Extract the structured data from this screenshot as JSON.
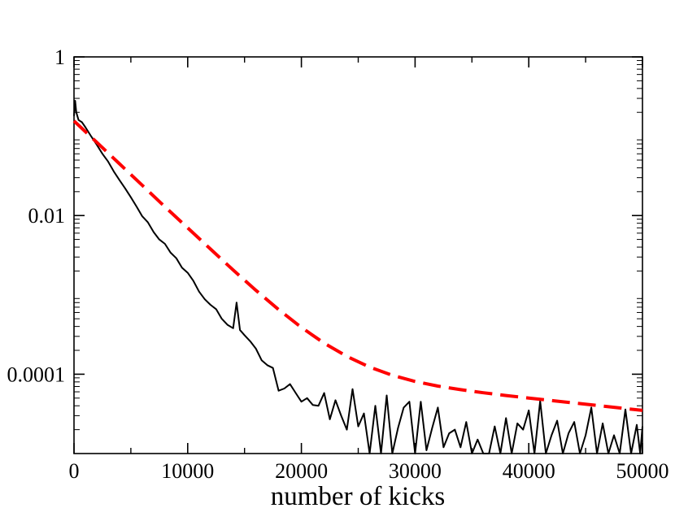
{
  "chart_data": {
    "type": "line",
    "title": "",
    "xlabel": "number of kicks",
    "ylabel": "",
    "xlim": [
      0,
      50000
    ],
    "ylim": [
      1e-05,
      1
    ],
    "y_scale": "log",
    "x_ticks": [
      0,
      10000,
      20000,
      30000,
      40000,
      50000
    ],
    "x_tick_labels": [
      "0",
      "10000",
      "20000",
      "30000",
      "40000",
      "50000"
    ],
    "y_ticks": [
      1,
      0.01,
      0.0001
    ],
    "y_tick_labels": [
      "1",
      "0.01",
      "0.0001"
    ],
    "grid": false,
    "legend": "none",
    "series": [
      {
        "color": "#000000",
        "style": "solid",
        "x": [
          0,
          100,
          200,
          400,
          700,
          1000,
          1500,
          2000,
          2500,
          3000,
          3500,
          4000,
          4500,
          5000,
          5500,
          6000,
          6500,
          7000,
          7500,
          8000,
          8500,
          9000,
          9500,
          10000,
          10500,
          11000,
          11500,
          12000,
          12500,
          13000,
          13500,
          14000,
          14300,
          14600,
          15000,
          15500,
          16000,
          16500,
          17000,
          17500,
          18000,
          18500,
          19000,
          19500,
          20000,
          20500,
          21000,
          21500,
          22000,
          22500,
          23000,
          23500,
          24000,
          24500,
          25000,
          25500,
          26000,
          26500,
          27000,
          27500,
          28000,
          28500,
          29000,
          29500,
          30000,
          30500,
          31000,
          31500,
          32000,
          32500,
          33000,
          33500,
          34000,
          34500,
          35000,
          35500,
          36000,
          36500,
          37000,
          37500,
          38000,
          38500,
          39000,
          39500,
          40000,
          40500,
          41000,
          41500,
          42000,
          42500,
          43000,
          43500,
          44000,
          44500,
          45000,
          45500,
          46000,
          46500,
          47000,
          47500,
          48000,
          48500,
          49000,
          49500,
          49800,
          50000
        ],
        "y": [
          0.18,
          0.28,
          0.2,
          0.16,
          0.15,
          0.13,
          0.1,
          0.078,
          0.06,
          0.048,
          0.036,
          0.028,
          0.022,
          0.017,
          0.013,
          0.0098,
          0.0082,
          0.0062,
          0.005,
          0.0044,
          0.0034,
          0.0029,
          0.0022,
          0.0019,
          0.0015,
          0.0011,
          0.00088,
          0.00075,
          0.00066,
          0.0005,
          0.00042,
          0.00038,
          0.0008,
          0.00036,
          0.00031,
          0.00026,
          0.00021,
          0.00015,
          0.00013,
          0.00012,
          6.2e-05,
          6.6e-05,
          7.5e-05,
          5.8e-05,
          4.5e-05,
          5e-05,
          4.1e-05,
          4e-05,
          5.8e-05,
          2.7e-05,
          4.7e-05,
          3e-05,
          2e-05,
          6.5e-05,
          2.2e-05,
          3.2e-05,
          9e-06,
          4e-05,
          8e-06,
          5.4e-05,
          6e-06,
          2.1e-05,
          3.8e-05,
          4.5e-05,
          8e-06,
          4.5e-05,
          1.1e-05,
          2.1e-05,
          3.8e-05,
          1.2e-05,
          1.8e-05,
          2e-05,
          1.2e-05,
          2.5e-05,
          8e-06,
          1.5e-05,
          3.8e-06,
          8e-06,
          2.2e-05,
          4.5e-06,
          2.8e-05,
          4e-06,
          2.4e-05,
          2e-05,
          3.5e-05,
          8e-06,
          4.6e-05,
          9e-06,
          1.7e-05,
          2.6e-05,
          5e-06,
          1.8e-05,
          2.5e-05,
          6e-06,
          1.7e-05,
          3.8e-05,
          8e-06,
          2.4e-05,
          6e-06,
          1.7e-05,
          7e-06,
          3.6e-05,
          6.6e-06,
          2.3e-05,
          3.4e-06,
          2.2e-05
        ]
      },
      {
        "color": "#ff0000",
        "style": "dashed",
        "x": [
          0,
          2000,
          4000,
          6000,
          8000,
          10000,
          12000,
          14000,
          16000,
          18000,
          20000,
          22000,
          24000,
          26000,
          28000,
          30000,
          32000,
          34000,
          36000,
          38000,
          40000,
          42000,
          44000,
          46000,
          48000,
          50000
        ],
        "y": [
          0.156,
          0.0837,
          0.0449,
          0.0241,
          0.0129,
          0.00698,
          0.00378,
          0.00206,
          0.00114,
          0.000653,
          0.000389,
          0.000246,
          0.000168,
          0.000123,
          9.69e-05,
          8.11e-05,
          7.09e-05,
          6.38e-05,
          5.84e-05,
          5.39e-05,
          5.01e-05,
          4.66e-05,
          4.34e-05,
          4.04e-05,
          3.76e-05,
          3.5e-05
        ]
      }
    ]
  }
}
